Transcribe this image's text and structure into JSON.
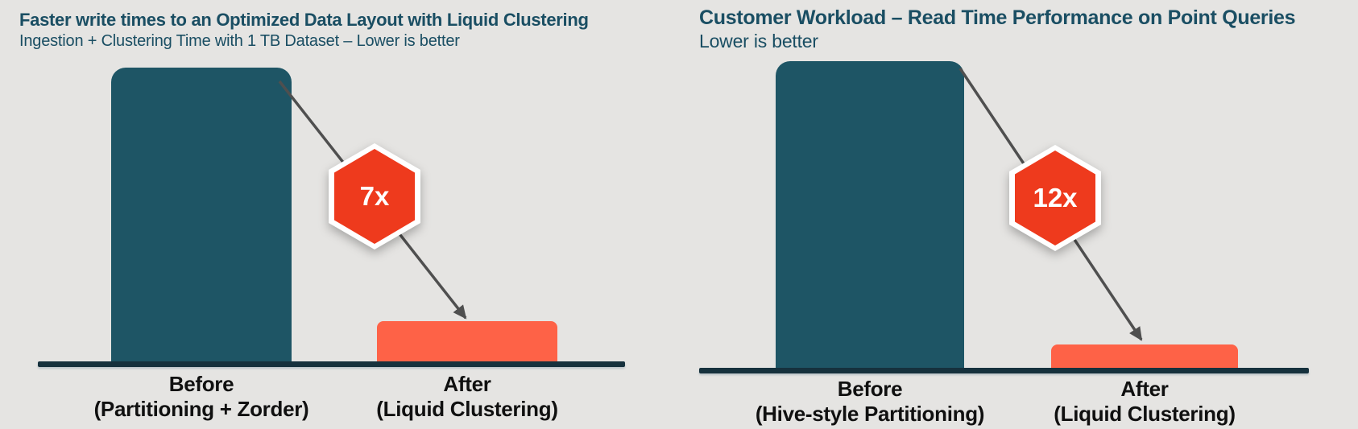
{
  "page": {
    "background": "#e5e4e2"
  },
  "colors": {
    "bar_before": "#1e5565",
    "bar_after": "#fe6247",
    "badge_red": "#ee3a1d",
    "badge_border": "#ffffff",
    "axis": "#16313d",
    "title_text": "#1a4e63",
    "category_text": "#101010",
    "arrow": "#4f4f4f"
  },
  "charts": [
    {
      "title": "Faster write times to an Optimized Data Layout with Liquid Clustering",
      "subtitle": "Ingestion + Clustering Time with 1 TB Dataset – Lower is better",
      "badge": "7x",
      "categories": [
        {
          "line1": "Before",
          "line2": "(Partitioning + Zorder)"
        },
        {
          "line1": "After",
          "line2": "(Liquid Clustering)"
        }
      ]
    },
    {
      "title": "Customer Workload –  Read Time Performance on Point Queries",
      "subtitle": "Lower is better",
      "badge": "12x",
      "categories": [
        {
          "line1": "Before",
          "line2": "(Hive-style Partitioning)"
        },
        {
          "line1": "After",
          "line2": "(Liquid Clustering)"
        }
      ]
    }
  ],
  "chart_data": [
    {
      "type": "bar",
      "title": "Faster write times to an Optimized Data Layout with Liquid Clustering",
      "subtitle": "Ingestion + Clustering Time with 1 TB Dataset – Lower is better",
      "categories": [
        "Before (Partitioning + Zorder)",
        "After (Liquid Clustering)"
      ],
      "values": [
        7,
        1
      ],
      "annotation": "7x",
      "ylabel": "",
      "xlabel": "",
      "legend": "none",
      "grid": false,
      "y_axis_shown": false,
      "note": "relative write time, lower is better; Before is 7x taller than After"
    },
    {
      "type": "bar",
      "title": "Customer Workload –  Read Time Performance on Point Queries",
      "subtitle": "Lower is better",
      "categories": [
        "Before (Hive-style Partitioning)",
        "After (Liquid Clustering)"
      ],
      "values": [
        12,
        1
      ],
      "annotation": "12x",
      "ylabel": "",
      "xlabel": "",
      "legend": "none",
      "grid": false,
      "y_axis_shown": false,
      "note": "relative read time on point queries, lower is better; Before is 12x taller than After"
    }
  ]
}
